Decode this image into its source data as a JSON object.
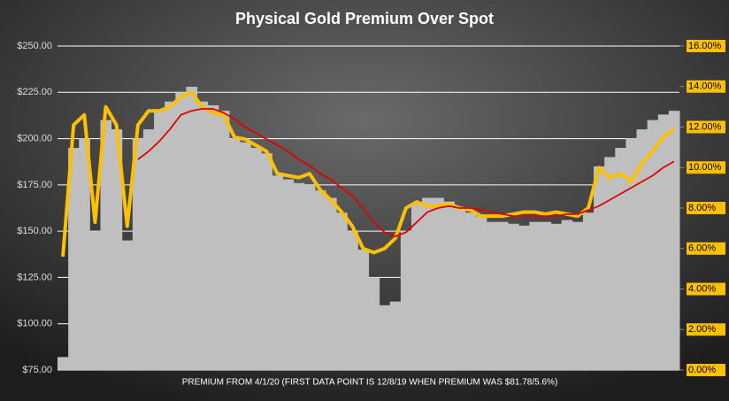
{
  "chart_data": {
    "type": "bar",
    "title": "Physical  Gold  Premium  Over  Spot",
    "x_label": "PREMIUM  FROM 4/1/20  (FIRST DATA POINT IS 12/8/19 WHEN PREMIUM  WAS $81.78/5.6%)",
    "categories": [
      null,
      null,
      null,
      null,
      null,
      null,
      null,
      null,
      null,
      null,
      null,
      null,
      null,
      null,
      null,
      null,
      null,
      null,
      null,
      null,
      null,
      null,
      null,
      null,
      null,
      null,
      null,
      null,
      null,
      null,
      null,
      null,
      null,
      null,
      null,
      null,
      null,
      null,
      null,
      null,
      null,
      null,
      null,
      null,
      null,
      null,
      null,
      null,
      null,
      null,
      null,
      null,
      null,
      null,
      null,
      null,
      null,
      null
    ],
    "ylim": [
      75,
      250
    ],
    "yticks": [
      {
        "value": 75,
        "label": "$75.00"
      },
      {
        "value": 100,
        "label": "$100.00"
      },
      {
        "value": 125,
        "label": "$125.00"
      },
      {
        "value": 150,
        "label": "$150.00"
      },
      {
        "value": 175,
        "label": "$175.00"
      },
      {
        "value": 200,
        "label": "$200.00"
      },
      {
        "value": 225,
        "label": "$225.00"
      },
      {
        "value": 250,
        "label": "$250.00"
      }
    ],
    "y2lim": [
      0,
      16
    ],
    "y2ticks": [
      {
        "value": 0,
        "label": "0.00%"
      },
      {
        "value": 2,
        "label": "2.00%"
      },
      {
        "value": 4,
        "label": "4.00%"
      },
      {
        "value": 6,
        "label": "6.00%"
      },
      {
        "value": 8,
        "label": "8.00%"
      },
      {
        "value": 10,
        "label": "10.00%"
      },
      {
        "value": 12,
        "label": "12.00%"
      },
      {
        "value": 14,
        "label": "14.00%"
      },
      {
        "value": 16,
        "label": "16.00%"
      }
    ],
    "grid": true,
    "series": [
      {
        "type": "bar",
        "color": "#bfbfbf",
        "values": [
          82,
          195,
          200,
          150,
          210,
          205,
          145,
          200,
          205,
          215,
          220,
          225,
          228,
          220,
          218,
          215,
          200,
          198,
          195,
          192,
          180,
          178,
          176,
          175,
          172,
          168,
          160,
          150,
          140,
          125,
          110,
          112,
          150,
          165,
          168,
          168,
          166,
          163,
          160,
          158,
          155,
          155,
          154,
          153,
          155,
          155,
          154,
          156,
          155,
          160,
          185,
          190,
          195,
          200,
          205,
          210,
          213,
          215
        ]
      },
      {
        "type": "line",
        "axis": "y2",
        "color": "#ffc000",
        "values": [
          5.6,
          12.1,
          12.6,
          7.3,
          13.0,
          12.1,
          7.1,
          12.1,
          12.8,
          12.8,
          13.0,
          13.5,
          13.7,
          13.0,
          12.7,
          12.6,
          11.5,
          11.4,
          11.1,
          10.8,
          9.7,
          9.6,
          9.5,
          9.7,
          8.9,
          8.4,
          7.8,
          7.1,
          6.0,
          5.8,
          6.0,
          6.5,
          8.0,
          8.3,
          8.1,
          8.1,
          8.2,
          8.0,
          7.9,
          7.6,
          7.6,
          7.6,
          7.7,
          7.8,
          7.8,
          7.7,
          7.8,
          7.7,
          7.6,
          8.0,
          10.0,
          9.5,
          9.7,
          9.3,
          10.2,
          10.8,
          11.5,
          11.9
        ]
      },
      {
        "type": "line",
        "axis": "y2",
        "color": "#e00000",
        "values": [
          null,
          null,
          null,
          null,
          null,
          null,
          null,
          10.4,
          10.8,
          11.3,
          11.9,
          12.6,
          12.8,
          12.9,
          12.9,
          12.7,
          12.4,
          12.0,
          11.7,
          11.4,
          11.1,
          10.8,
          10.4,
          10.1,
          9.7,
          9.4,
          9.0,
          8.6,
          8.0,
          7.3,
          6.8,
          6.6,
          6.8,
          7.3,
          7.8,
          8.0,
          8.1,
          8.0,
          8.0,
          7.9,
          7.8,
          7.7,
          7.6,
          7.6,
          7.6,
          7.6,
          7.6,
          7.7,
          7.7,
          7.9,
          8.1,
          8.4,
          8.7,
          9.0,
          9.3,
          9.6,
          10.0,
          10.3
        ]
      }
    ]
  }
}
